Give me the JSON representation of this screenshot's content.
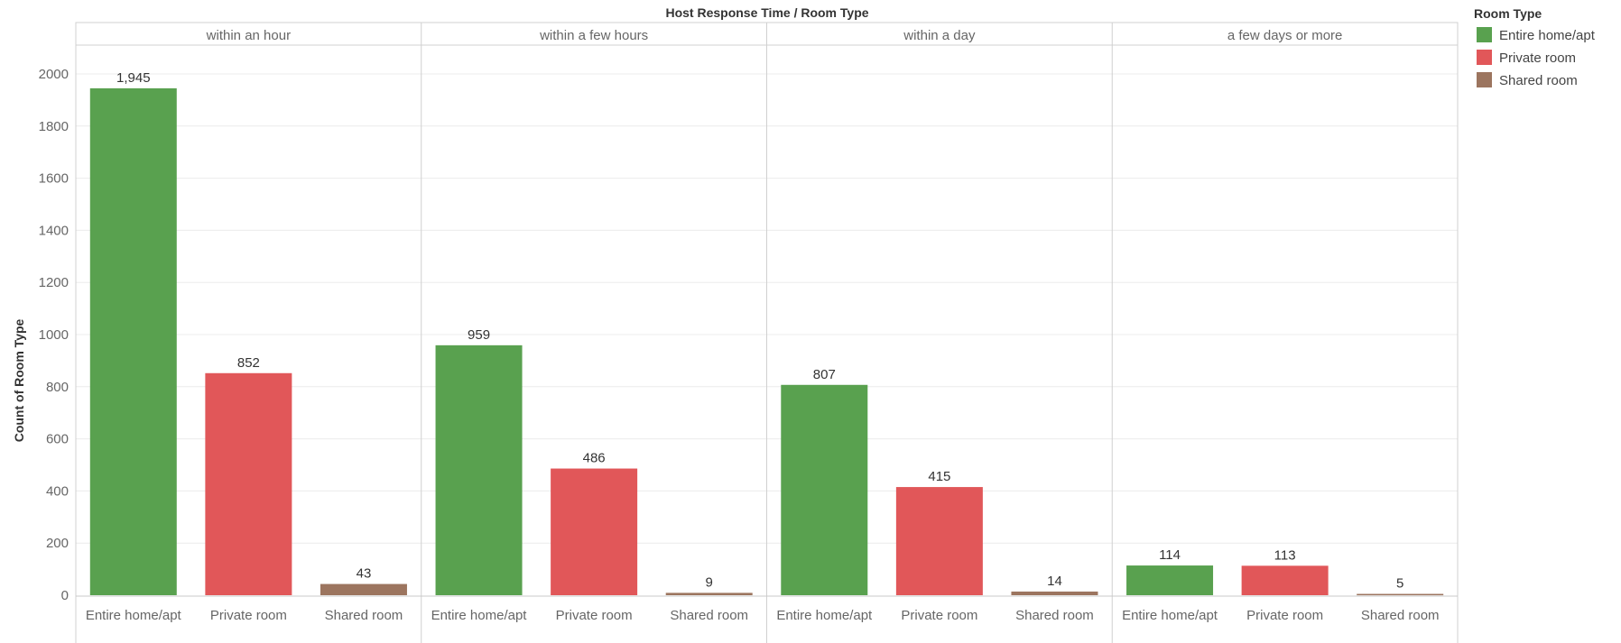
{
  "chart_data": {
    "type": "bar",
    "title": "Host Response Time  /  Room Type",
    "ylabel": "Count of Room Type",
    "ylim": [
      0,
      2100
    ],
    "yticks": [
      0,
      200,
      400,
      600,
      800,
      1000,
      1200,
      1400,
      1600,
      1800,
      2000
    ],
    "grid": true,
    "categories": [
      "Entire home/apt",
      "Private room",
      "Shared room"
    ],
    "panels": [
      {
        "name": "within an hour",
        "values": [
          1945,
          852,
          43
        ],
        "labels": [
          "1,945",
          "852",
          "43"
        ]
      },
      {
        "name": "within a few hours",
        "values": [
          959,
          486,
          9
        ],
        "labels": [
          "959",
          "486",
          "9"
        ]
      },
      {
        "name": "within a day",
        "values": [
          807,
          415,
          14
        ],
        "labels": [
          "807",
          "415",
          "14"
        ]
      },
      {
        "name": "a few days or more",
        "values": [
          114,
          113,
          5
        ],
        "labels": [
          "114",
          "113",
          "5"
        ]
      }
    ],
    "legend": {
      "title": "Room Type",
      "placement": "top-right",
      "items": [
        {
          "label": "Entire home/apt",
          "color": "#59a14f"
        },
        {
          "label": "Private room",
          "color": "#e15759"
        },
        {
          "label": "Shared room",
          "color": "#9c755f"
        }
      ]
    }
  }
}
